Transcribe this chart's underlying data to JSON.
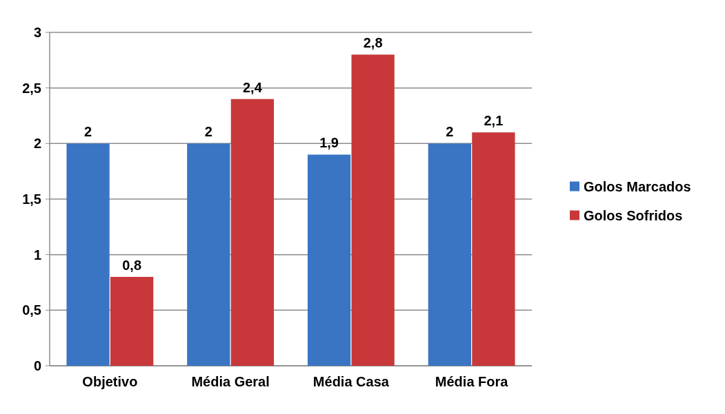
{
  "chart_data": {
    "type": "bar",
    "categories": [
      "Objetivo",
      "Média Geral",
      "Média Casa",
      "Média Fora"
    ],
    "series": [
      {
        "name": "Golos Marcados",
        "color": "#3a75c4",
        "values": [
          2,
          2,
          1.9,
          2
        ],
        "value_labels": [
          "2",
          "2",
          "1,9",
          "2"
        ]
      },
      {
        "name": "Golos Sofridos",
        "color": "#c8383a",
        "values": [
          0.8,
          2.4,
          2.8,
          2.1
        ],
        "value_labels": [
          "0,8",
          "2,4",
          "2,8",
          "2,1"
        ]
      }
    ],
    "ylim": [
      0,
      3
    ],
    "yticks": [
      0,
      {
        "value": 0.5,
        "label": "0,5"
      },
      1,
      {
        "value": 1.5,
        "label": "1,5"
      },
      2,
      {
        "value": 2.5,
        "label": "2,5"
      },
      3
    ],
    "grid": "y",
    "legend": "right"
  }
}
